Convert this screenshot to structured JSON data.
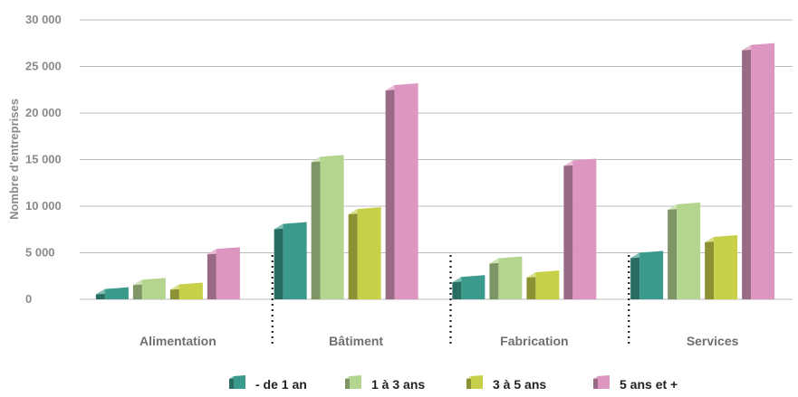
{
  "chart_data": {
    "type": "bar",
    "ylabel": "Nombre d'entreprises",
    "xlabel": "",
    "ylim": [
      0,
      30000
    ],
    "yticks": [
      0,
      5000,
      10000,
      15000,
      20000,
      25000,
      30000
    ],
    "ytick_labels": [
      "0",
      "5 000",
      "10 000",
      "15 000",
      "20 000",
      "25 000",
      "30 000"
    ],
    "grid": true,
    "legend_position": "bottom",
    "categories": [
      "Alimentation",
      "Bâtiment",
      "Fabrication",
      "Services"
    ],
    "series": [
      {
        "name": "- de 1 an",
        "values": [
          1100,
          8100,
          2400,
          5000
        ],
        "color": "#3a9b8c"
      },
      {
        "name": "1 à 3 ans",
        "values": [
          2100,
          15300,
          4400,
          10200
        ],
        "color": "#b4d590"
      },
      {
        "name": "3 à 5 ans",
        "values": [
          1600,
          9700,
          2900,
          6700
        ],
        "color": "#c8d04a"
      },
      {
        "name": "5 ans et +",
        "values": [
          5400,
          23000,
          14900,
          27300
        ],
        "color": "#dc96c0"
      }
    ]
  }
}
